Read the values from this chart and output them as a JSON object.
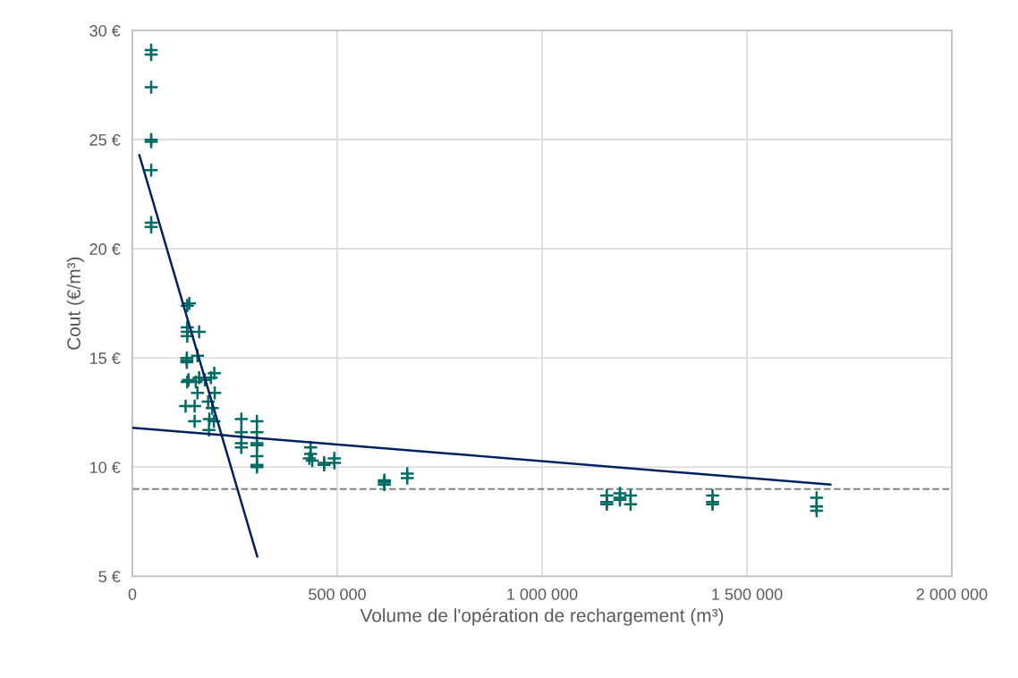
{
  "chart_data": {
    "type": "scatter",
    "xlabel": "Volume de l'opération de rechargement (m³)",
    "ylabel": "Cout (€/m³)",
    "xlim": [
      0,
      2000000
    ],
    "xticks": [
      {
        "value": 0,
        "label": "0"
      },
      {
        "value": 500000,
        "label": "500 000"
      },
      {
        "value": 1000000,
        "label": "1 000 000"
      },
      {
        "value": 1500000,
        "label": "1 500 000"
      },
      {
        "value": 2000000,
        "label": "2 000 000"
      }
    ],
    "ylim": [
      5,
      30
    ],
    "yticks": [
      {
        "value": 5,
        "label": "5 €"
      },
      {
        "value": 10,
        "label": "10 €"
      },
      {
        "value": 15,
        "label": "15 €"
      },
      {
        "value": 20,
        "label": "20 €"
      },
      {
        "value": 25,
        "label": "25 €"
      },
      {
        "value": 30,
        "label": "30 €"
      }
    ],
    "grid": true,
    "legend": false,
    "series": [
      {
        "marker": "cross",
        "color": "#006b63",
        "x": [
          46000,
          46000,
          46000,
          46000,
          46000,
          46000,
          46000,
          46000,
          134000,
          139000,
          134000,
          134000,
          134000,
          163000,
          133000,
          133000,
          133000,
          159000,
          200000,
          137000,
          134000,
          155000,
          163000,
          177000,
          192000,
          201000,
          159000,
          185000,
          130000,
          152000,
          195000,
          188000,
          199000,
          152000,
          187000,
          266000,
          266000,
          266000,
          266000,
          304000,
          304000,
          304000,
          304000,
          304000,
          304000,
          304000,
          435000,
          435000,
          432000,
          439000,
          468000,
          468000,
          493000,
          493000,
          615000,
          615000,
          615000,
          671000,
          671000,
          1158000,
          1158000,
          1158000,
          1190000,
          1190000,
          1190000,
          1216000,
          1216000,
          1416000,
          1416000,
          1416000,
          1670000,
          1670000,
          1670000
        ],
        "values": [
          29.1,
          28.9,
          27.4,
          25.0,
          24.9,
          23.6,
          21.2,
          21.0,
          17.4,
          17.5,
          16.4,
          16.2,
          16.0,
          16.2,
          15.0,
          14.9,
          14.8,
          15.1,
          14.3,
          14.0,
          13.9,
          13.9,
          14.1,
          14.0,
          14.1,
          13.4,
          13.4,
          13.0,
          12.8,
          12.8,
          12.7,
          12.2,
          12.1,
          12.1,
          11.7,
          12.2,
          11.6,
          11.1,
          10.9,
          12.1,
          11.6,
          11.1,
          11.0,
          10.5,
          10.1,
          10.0,
          10.9,
          10.6,
          10.4,
          10.3,
          10.2,
          10.1,
          10.4,
          10.2,
          9.4,
          9.3,
          9.2,
          9.7,
          9.5,
          8.7,
          8.4,
          8.3,
          8.8,
          8.6,
          8.5,
          8.7,
          8.3,
          8.7,
          8.4,
          8.3,
          8.6,
          8.2,
          8.0
        ]
      },
      {
        "type": "line",
        "marker": "none",
        "color": "#002060",
        "x": [
          17000,
          305000
        ],
        "values": [
          24.3,
          5.9
        ]
      },
      {
        "type": "line",
        "marker": "none",
        "color": "#002060",
        "x": [
          0,
          1704000
        ],
        "values": [
          11.8,
          9.2
        ]
      }
    ],
    "ref_lines": [
      {
        "axis": "y",
        "value": 9,
        "color": "#808080",
        "line_style": "dashed"
      }
    ]
  }
}
